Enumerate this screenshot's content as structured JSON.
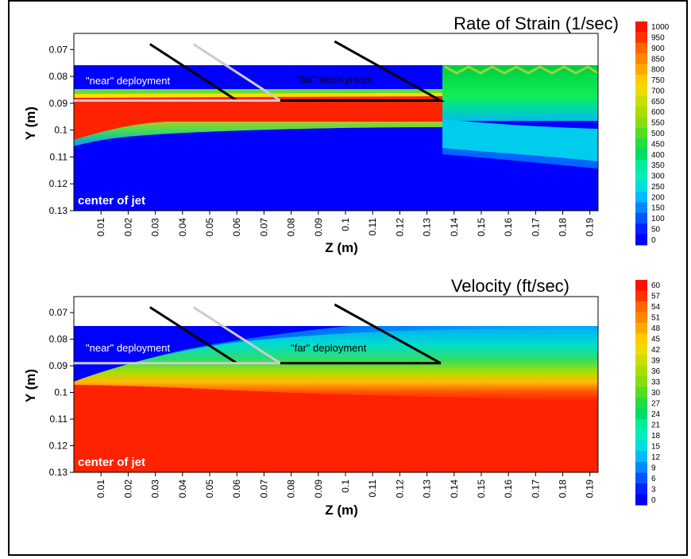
{
  "chart_data": [
    {
      "type": "heatmap",
      "title": "Rate of Strain (1/sec)",
      "xlabel": "Z (m)",
      "ylabel": "Y (m)",
      "xticks": [
        "0.01",
        "0.02",
        "0.03",
        "0.04",
        "0.05",
        "0.06",
        "0.07",
        "0.08",
        "0.09",
        "0.1",
        "0.11",
        "0.12",
        "0.13",
        "0.14",
        "0.15",
        "0.16",
        "0.17",
        "0.18",
        "0.19"
      ],
      "yticks": [
        "0.07",
        "0.08",
        "0.09",
        "0.1",
        "0.11",
        "0.12",
        "0.13"
      ],
      "xlim": [
        0,
        0.193
      ],
      "ylim": [
        0.13,
        0.064
      ],
      "y_inverted": true,
      "colorbar": {
        "labels": [
          "1000",
          "950",
          "900",
          "850",
          "800",
          "750",
          "700",
          "650",
          "600",
          "550",
          "500",
          "450",
          "400",
          "350",
          "300",
          "250",
          "200",
          "150",
          "100",
          "50",
          "0"
        ],
        "min": 0,
        "max": 1000
      },
      "annotations": [
        {
          "text": "\"near\" deployment",
          "color": "#ffffff"
        },
        {
          "text": "\"far\" deployment",
          "color": "#000000"
        },
        {
          "text": "center of jet",
          "color": "#ffffff"
        }
      ],
      "deployment_lines": {
        "near": {
          "color": "#cccccc",
          "points": [
            [
              0.044,
              0.068
            ],
            [
              0.076,
              0.089
            ],
            [
              0,
              0.089
            ]
          ]
        },
        "far": {
          "color": "#000000",
          "points": [
            [
              0.096,
              0.067
            ],
            [
              0.135,
              0.089
            ],
            [
              0.076,
              0.089
            ]
          ]
        },
        "probe": {
          "color": "#000000",
          "points": [
            [
              0.028,
              0.068
            ],
            [
              0.06,
              0.089
            ]
          ]
        }
      }
    },
    {
      "type": "heatmap",
      "title": "Velocity (ft/sec)",
      "xlabel": "Z (m)",
      "ylabel": "Y (m)",
      "xticks": [
        "0.01",
        "0.02",
        "0.03",
        "0.04",
        "0.05",
        "0.06",
        "0.07",
        "0.08",
        "0.09",
        "0.1",
        "0.11",
        "0.12",
        "0.13",
        "0.14",
        "0.15",
        "0.16",
        "0.17",
        "0.18",
        "0.19"
      ],
      "yticks": [
        "0.07",
        "0.08",
        "0.09",
        "0.1",
        "0.11",
        "0.12",
        "0.13"
      ],
      "xlim": [
        0,
        0.193
      ],
      "ylim": [
        0.13,
        0.064
      ],
      "y_inverted": true,
      "colorbar": {
        "labels": [
          "60",
          "57",
          "54",
          "51",
          "48",
          "45",
          "42",
          "39",
          "36",
          "33",
          "30",
          "27",
          "24",
          "21",
          "18",
          "15",
          "12",
          "9",
          "6",
          "3",
          "0"
        ],
        "min": 0,
        "max": 60
      },
      "annotations": [
        {
          "text": "\"near\" deployment",
          "color": "#ffffff"
        },
        {
          "text": "\"far\" deployment",
          "color": "#000000"
        },
        {
          "text": "center of jet",
          "color": "#ffffff"
        }
      ],
      "deployment_lines": {
        "near": {
          "color": "#cccccc",
          "points": [
            [
              0.044,
              0.068
            ],
            [
              0.076,
              0.089
            ],
            [
              0,
              0.089
            ]
          ]
        },
        "far": {
          "color": "#000000",
          "points": [
            [
              0.096,
              0.067
            ],
            [
              0.135,
              0.089
            ],
            [
              0.076,
              0.089
            ]
          ]
        },
        "probe": {
          "color": "#000000",
          "points": [
            [
              0.028,
              0.068
            ],
            [
              0.06,
              0.089
            ]
          ]
        }
      }
    }
  ],
  "colormap": [
    "#0000ff",
    "#0022ff",
    "#0055ff",
    "#0088ff",
    "#00bbff",
    "#00dddd",
    "#00eebb",
    "#00ee99",
    "#00dd66",
    "#22dd44",
    "#55dd22",
    "#88dd11",
    "#aadd00",
    "#ccdd00",
    "#eedd00",
    "#ffcc00",
    "#ffaa00",
    "#ff8800",
    "#ff6600",
    "#ff3300",
    "#ff1100"
  ]
}
